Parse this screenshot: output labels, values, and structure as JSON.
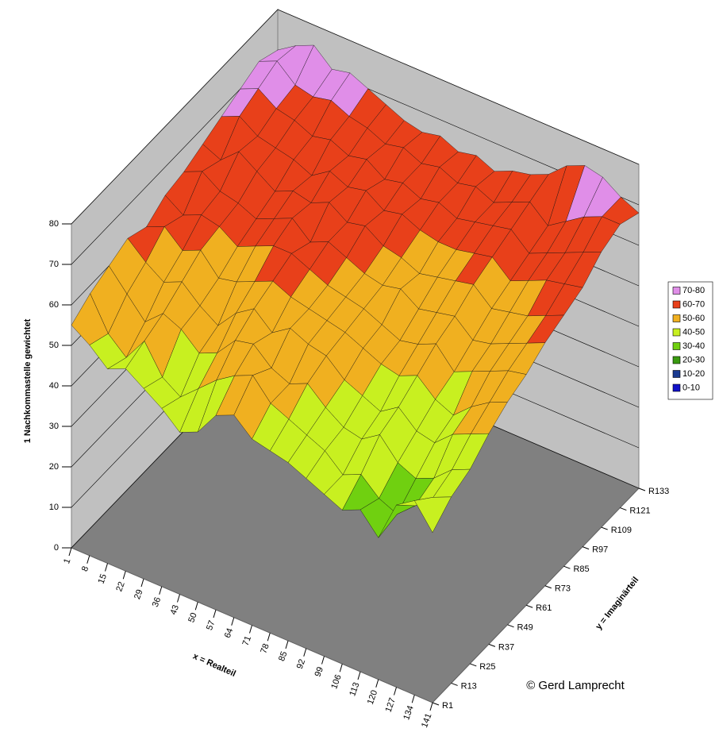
{
  "chart_data": {
    "type": "surface",
    "zlabel": "1 Nachkommastelle gewichtet",
    "xlabel": "x = Realteil",
    "ylabel": "y = Imaginärteil",
    "annotation": "© Gerd Lamprecht",
    "x": [
      1,
      8,
      15,
      22,
      29,
      36,
      43,
      50,
      57,
      64,
      71,
      78,
      85,
      92,
      99,
      106,
      113,
      120,
      127,
      134,
      141
    ],
    "y": [
      "R1",
      "R13",
      "R25",
      "R37",
      "R49",
      "R61",
      "R73",
      "R85",
      "R97",
      "R109",
      "R121",
      "R133"
    ],
    "z": [
      [
        55,
        52,
        48,
        50,
        47,
        44,
        40,
        42,
        48,
        50,
        46,
        45,
        44,
        42,
        40,
        38,
        40,
        35,
        45,
        48,
        42
      ],
      [
        58,
        50,
        46,
        52,
        45,
        42,
        46,
        50,
        53,
        55,
        50,
        48,
        46,
        44,
        40,
        42,
        38,
        36,
        40,
        44,
        46
      ],
      [
        60,
        55,
        50,
        54,
        52,
        48,
        50,
        55,
        56,
        52,
        50,
        52,
        48,
        45,
        44,
        47,
        42,
        40,
        42,
        46,
        48
      ],
      [
        62,
        58,
        55,
        57,
        53,
        50,
        55,
        58,
        54,
        57,
        55,
        54,
        50,
        48,
        46,
        49,
        45,
        44,
        48,
        50,
        52
      ],
      [
        60,
        62,
        58,
        60,
        55,
        56,
        58,
        60,
        58,
        57,
        56,
        55,
        53,
        51,
        50,
        52,
        48,
        46,
        50,
        53,
        55
      ],
      [
        63,
        60,
        62,
        61,
        58,
        60,
        62,
        62,
        60,
        58,
        57,
        56,
        54,
        52,
        53,
        55,
        50,
        52,
        54,
        56,
        57
      ],
      [
        64,
        66,
        63,
        62,
        60,
        62,
        64,
        60,
        62,
        60,
        58,
        57,
        58,
        55,
        56,
        57,
        53,
        54,
        56,
        58,
        60
      ],
      [
        66,
        64,
        68,
        65,
        62,
        64,
        63,
        65,
        62,
        63,
        60,
        59,
        57,
        58,
        59,
        60,
        56,
        57,
        58,
        60,
        62
      ],
      [
        68,
        70,
        67,
        66,
        65,
        63,
        66,
        64,
        65,
        62,
        63,
        61,
        60,
        60,
        61,
        62,
        58,
        60,
        62,
        63,
        64
      ],
      [
        70,
        72,
        69,
        68,
        66,
        67,
        65,
        66,
        63,
        64,
        62,
        63,
        61,
        62,
        63,
        64,
        60,
        62,
        64,
        66,
        68
      ],
      [
        72,
        74,
        70,
        69,
        70,
        68,
        67,
        65,
        66,
        64,
        65,
        63,
        64,
        62,
        64,
        66,
        62,
        65,
        68,
        70,
        70
      ],
      [
        70,
        73,
        75,
        71,
        72,
        70,
        68,
        66,
        65,
        66,
        64,
        65,
        63,
        65,
        66,
        68,
        72,
        74,
        73,
        70,
        68
      ]
    ],
    "zlim": [
      0,
      80
    ],
    "zticks": [
      0,
      10,
      20,
      30,
      40,
      50,
      60,
      70,
      80
    ],
    "legend": [
      {
        "name": "70-80",
        "min": 70,
        "max": 80,
        "color": "#e08ee8"
      },
      {
        "name": "60-70",
        "min": 60,
        "max": 70,
        "color": "#e8401a"
      },
      {
        "name": "50-60",
        "min": 50,
        "max": 60,
        "color": "#f0b020"
      },
      {
        "name": "40-50",
        "min": 40,
        "max": 50,
        "color": "#c8f020"
      },
      {
        "name": "30-40",
        "min": 30,
        "max": 40,
        "color": "#70d010"
      },
      {
        "name": "20-30",
        "min": 20,
        "max": 30,
        "color": "#3a9a10"
      },
      {
        "name": "10-20",
        "min": 10,
        "max": 20,
        "color": "#1a3a90"
      },
      {
        "name": "0-10",
        "min": 0,
        "max": 10,
        "color": "#1010c8"
      }
    ]
  }
}
